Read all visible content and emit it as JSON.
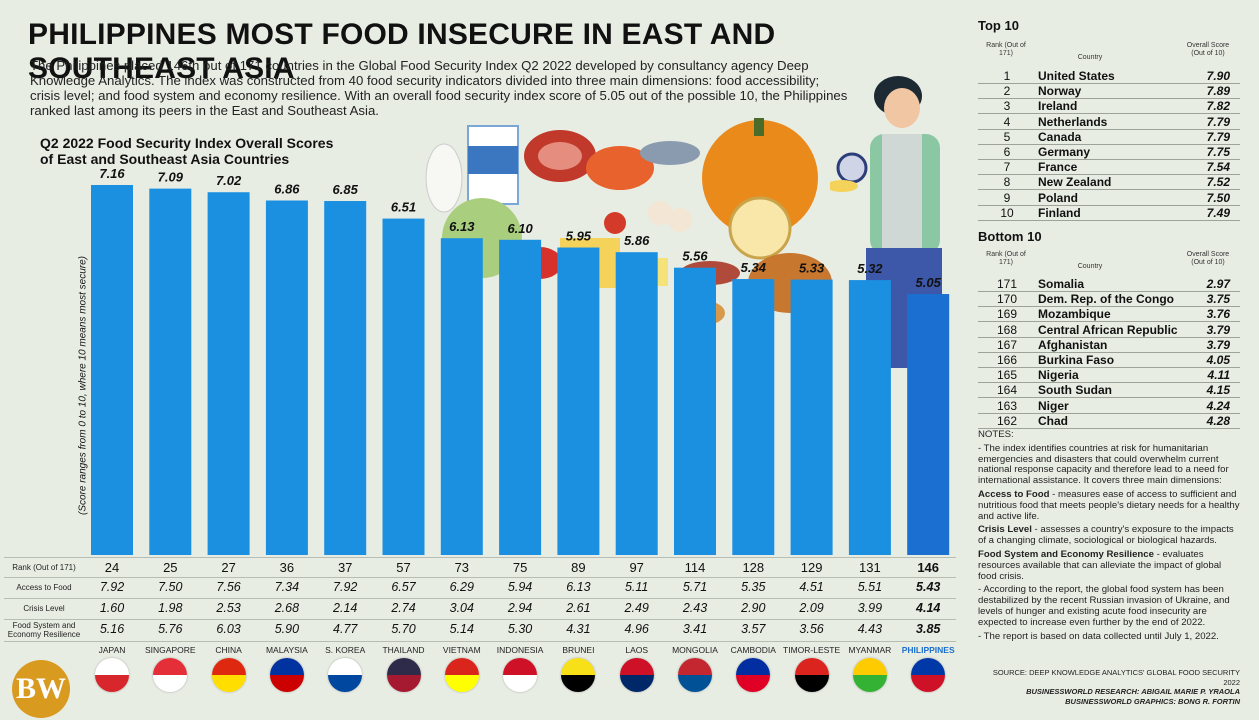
{
  "headline": "PHILIPPINES MOST FOOD INSECURE IN EAST AND SOUTHEAST ASIA",
  "intro": "The Philippines placed 146th out of 171 countries in the Global Food Security Index Q2 2022 developed by consultancy agency Deep Knowledge Analytics. The index was constructed from 40 food security indicators divided into three main dimensions: food accessibility; crisis level; and food system and economy resilience. With an overall food security index score of 5.05 out of the possible 10, the Philippines ranked last among its peers in the East and Southeast Asia.",
  "chart_data": {
    "type": "bar",
    "title": "Q2 2022 Food Security Index Overall Scores of East and Southeast Asia Countries",
    "ylabel": "(Score ranges from 0 to 10, where 10 means most secure)",
    "categories": [
      "JAPAN",
      "SINGAPORE",
      "CHINA",
      "MALAYSIA",
      "S. KOREA",
      "THAILAND",
      "VIETNAM",
      "INDONESIA",
      "BRUNEI",
      "LAOS",
      "MONGOLIA",
      "CAMBODIA",
      "TIMOR-LESTE",
      "MYANMAR",
      "PHILIPPINES"
    ],
    "values": [
      7.16,
      7.09,
      7.02,
      6.86,
      6.85,
      6.51,
      6.13,
      6.1,
      5.95,
      5.86,
      5.56,
      5.34,
      5.33,
      5.32,
      5.05
    ],
    "value_labels": [
      "7.16",
      "7.09",
      "7.02",
      "6.86",
      "6.85",
      "6.51",
      "6.13",
      "6.10",
      "5.95",
      "5.86",
      "5.56",
      "5.34",
      "5.33",
      "5.32",
      "5.05"
    ],
    "ylim": [
      0,
      7.5
    ],
    "bar_color": "#1b8fe0",
    "highlight_color": "#1a6fd0",
    "highlight": "PHILIPPINES"
  },
  "table": {
    "row_labels": [
      "Rank (Out of 171)",
      "Access to Food",
      "Crisis Level",
      "Food System and Economy Resilience"
    ],
    "rank": [
      "24",
      "25",
      "27",
      "36",
      "37",
      "57",
      "73",
      "75",
      "89",
      "97",
      "114",
      "128",
      "129",
      "131",
      "146"
    ],
    "access": [
      "7.92",
      "7.50",
      "7.56",
      "7.34",
      "7.92",
      "6.57",
      "6.29",
      "5.94",
      "6.13",
      "5.11",
      "5.71",
      "5.35",
      "4.51",
      "5.51",
      "5.43"
    ],
    "crisis": [
      "1.60",
      "1.98",
      "2.53",
      "2.68",
      "2.14",
      "2.74",
      "3.04",
      "2.94",
      "2.61",
      "2.49",
      "2.43",
      "2.90",
      "2.09",
      "3.99",
      "4.14"
    ],
    "resilience": [
      "5.16",
      "5.76",
      "6.03",
      "5.90",
      "4.77",
      "5.70",
      "5.14",
      "5.30",
      "4.31",
      "4.96",
      "3.41",
      "3.57",
      "3.56",
      "4.43",
      "3.85"
    ]
  },
  "logo": "BW",
  "top10": {
    "title": "Top 10",
    "rank_header": "Rank (Out of 171)",
    "country_header": "Country",
    "score_header": "Overall Score (Out of 10)",
    "rows": [
      {
        "rank": "1",
        "country": "United States",
        "score": "7.90"
      },
      {
        "rank": "2",
        "country": "Norway",
        "score": "7.89"
      },
      {
        "rank": "3",
        "country": "Ireland",
        "score": "7.82"
      },
      {
        "rank": "4",
        "country": "Netherlands",
        "score": "7.79"
      },
      {
        "rank": "5",
        "country": "Canada",
        "score": "7.79"
      },
      {
        "rank": "6",
        "country": "Germany",
        "score": "7.75"
      },
      {
        "rank": "7",
        "country": "France",
        "score": "7.54"
      },
      {
        "rank": "8",
        "country": "New Zealand",
        "score": "7.52"
      },
      {
        "rank": "9",
        "country": "Poland",
        "score": "7.50"
      },
      {
        "rank": "10",
        "country": "Finland",
        "score": "7.49"
      }
    ]
  },
  "bottom10": {
    "title": "Bottom 10",
    "rank_header": "Rank (Out of 171)",
    "country_header": "Country",
    "score_header": "Overall Score (Out of 10)",
    "rows": [
      {
        "rank": "171",
        "country": "Somalia",
        "score": "2.97"
      },
      {
        "rank": "170",
        "country": "Dem. Rep. of the Congo",
        "score": "3.75"
      },
      {
        "rank": "169",
        "country": "Mozambique",
        "score": "3.76"
      },
      {
        "rank": "168",
        "country": "Central African Republic",
        "score": "3.79"
      },
      {
        "rank": "167",
        "country": "Afghanistan",
        "score": "3.79"
      },
      {
        "rank": "166",
        "country": "Burkina Faso",
        "score": "4.05"
      },
      {
        "rank": "165",
        "country": "Nigeria",
        "score": "4.11"
      },
      {
        "rank": "164",
        "country": "South Sudan",
        "score": "4.15"
      },
      {
        "rank": "163",
        "country": "Niger",
        "score": "4.24"
      },
      {
        "rank": "162",
        "country": "Chad",
        "score": "4.28"
      }
    ]
  },
  "notes": {
    "title": "NOTES:",
    "intro": "- The index identifies countries at risk for humanitarian emergencies and disasters that could overwhelm current national response capacity and therefore lead to a need for international assistance. It covers three main dimensions:",
    "access_term": "Access to Food",
    "access_text": " - measures ease of access to sufficient and nutritious food that meets people's dietary needs for a healthy and active life.",
    "crisis_term": "Crisis Level",
    "crisis_text": " - assesses a country's exposure to the impacts of a changing climate, sociological or biological hazards.",
    "resilience_term": "Food System and Economy Resilience",
    "resilience_text": " - evaluates resources available that can alleviate the impact of global food crisis.",
    "report": "- According to the report, the global food system has been destabilized by the recent Russian invasion of Ukraine, and levels of hunger and existing acute food insecurity are expected to increase even further by the end of 2022.",
    "data_note": "- The report is based on data collected until July 1, 2022."
  },
  "credits": {
    "source": "SOURCE: DEEP KNOWLEDGE ANALYTICS' GLOBAL FOOD SECURITY 2022",
    "research": "BUSINESSWORLD RESEARCH: ABIGAIL MARIE P. YRAOLA",
    "graphics": "BUSINESSWORLD GRAPHICS: BONG R. FORTIN"
  }
}
